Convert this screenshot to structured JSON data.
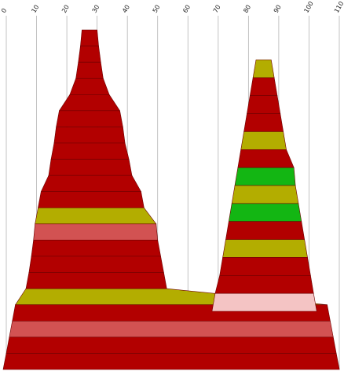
{
  "chart_data": {
    "type": "stacked-band-profile",
    "title": "",
    "xlabel": "",
    "ylabel": "",
    "xlim": [
      0,
      110
    ],
    "x_ticks": [
      "0",
      "10",
      "20",
      "30",
      "40",
      "50",
      "60",
      "70",
      "80",
      "90",
      "100",
      "110"
    ],
    "grid": "vertical",
    "colors": {
      "red": "#b20000",
      "olive": "#b3ad00",
      "green": "#13b613",
      "salmon": "#d25252",
      "pink": "#f4c4c4"
    },
    "shapes": [
      {
        "name": "",
        "bands": [
          {
            "left": 25,
            "right": 30,
            "color": "red"
          },
          {
            "left": 24.5,
            "right": 30.5,
            "color": "red"
          },
          {
            "left": 23.8,
            "right": 31.2,
            "color": "red"
          },
          {
            "left": 23,
            "right": 32,
            "color": "red"
          },
          {
            "left": 21,
            "right": 34,
            "color": "red"
          },
          {
            "left": 17.5,
            "right": 37.5,
            "color": "red"
          },
          {
            "left": 16.5,
            "right": 38.5,
            "color": "red"
          },
          {
            "left": 15.8,
            "right": 39.2,
            "color": "red"
          },
          {
            "left": 14.8,
            "right": 40.5,
            "color": "red"
          },
          {
            "left": 14,
            "right": 41.5,
            "color": "red"
          },
          {
            "left": 11.5,
            "right": 44.5,
            "color": "red"
          },
          {
            "left": 10.5,
            "right": 45.5,
            "color": "olive"
          },
          {
            "left": 9.5,
            "right": 49.5,
            "color": "salmon"
          },
          {
            "left": 9,
            "right": 50,
            "color": "red"
          },
          {
            "left": 8.3,
            "right": 51,
            "color": "red"
          },
          {
            "left": 7.5,
            "right": 52,
            "color": "red"
          },
          {
            "left": 6.5,
            "right": 53,
            "color": "olive"
          },
          {
            "left": 3,
            "right": 106,
            "color": "red"
          },
          {
            "left": 2,
            "right": 107,
            "color": "salmon"
          },
          {
            "left": 1,
            "right": 108,
            "color": "red"
          },
          {
            "left": 0,
            "right": 109,
            "color": "red"
          }
        ]
      },
      {
        "name": "",
        "bands": [
          {
            "left": 82.5,
            "right": 87.5,
            "color": "olive"
          },
          {
            "left": 81.5,
            "right": 88.5,
            "color": "red"
          },
          {
            "left": 80.5,
            "right": 89.5,
            "color": "red"
          },
          {
            "left": 79.5,
            "right": 90.5,
            "color": "red"
          },
          {
            "left": 78.5,
            "right": 91.5,
            "color": "olive"
          },
          {
            "left": 77.5,
            "right": 92.5,
            "color": "red"
          },
          {
            "left": 76.5,
            "right": 95,
            "color": "green"
          },
          {
            "left": 75.5,
            "right": 95.5,
            "color": "olive"
          },
          {
            "left": 74.5,
            "right": 96.5,
            "color": "green"
          },
          {
            "left": 73.5,
            "right": 97.5,
            "color": "red"
          },
          {
            "left": 72.5,
            "right": 98.5,
            "color": "olive"
          },
          {
            "left": 71.5,
            "right": 99.5,
            "color": "red"
          },
          {
            "left": 70.5,
            "right": 100.5,
            "color": "red"
          },
          {
            "left": 69,
            "right": 101.5,
            "color": "pink"
          }
        ]
      }
    ]
  }
}
